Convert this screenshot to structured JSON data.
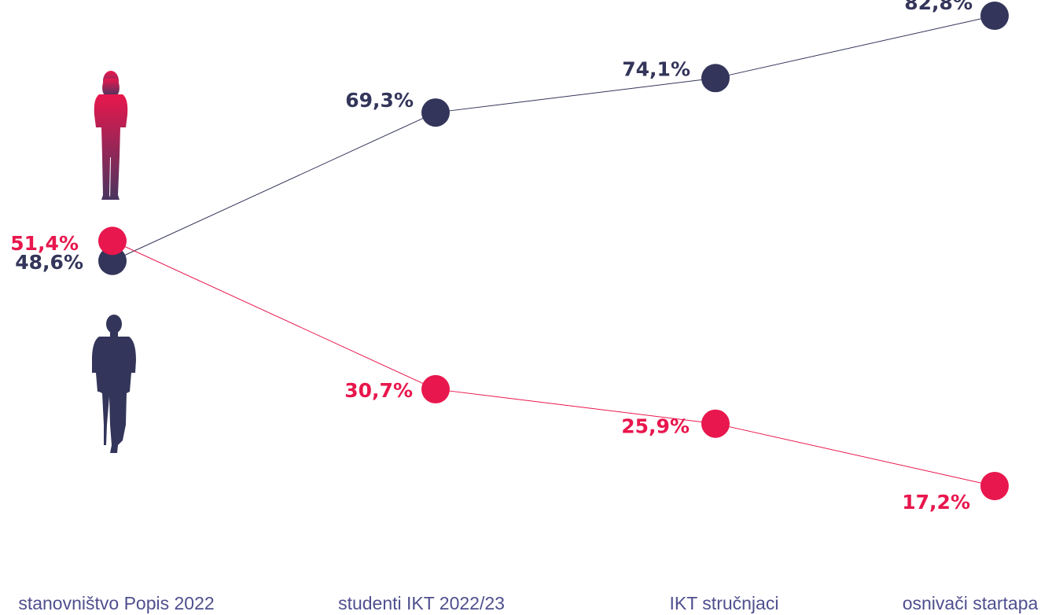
{
  "chart_data": {
    "type": "line",
    "categories": [
      "stanovništvo Popis 2022",
      "studenti IKT 2022/23",
      "IKT stručnjaci",
      "osnivači startapa"
    ],
    "series": [
      {
        "key": "men",
        "values": [
          48.6,
          69.3,
          74.1,
          82.8
        ],
        "labels": [
          "48,6%",
          "69,3%",
          "74,1%",
          "82,8%"
        ],
        "color": "#33355a"
      },
      {
        "key": "women",
        "values": [
          51.4,
          30.7,
          25.9,
          17.2
        ],
        "labels": [
          "51,4%",
          "30,7%",
          "25,9%",
          "17,2%"
        ],
        "color": "#e8174d"
      }
    ],
    "ylim": [
      0,
      100
    ],
    "grid": false,
    "legend": "none",
    "icons": [
      "woman-silhouette-icon",
      "man-silhouette-icon"
    ],
    "category_label_color": "#4f4f8e"
  }
}
